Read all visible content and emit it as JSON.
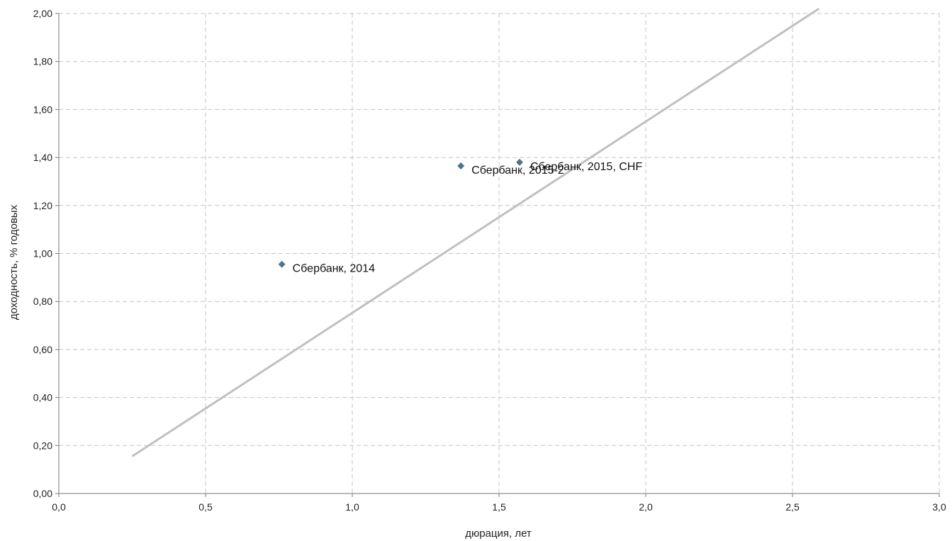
{
  "chart_data": {
    "type": "scatter",
    "xlabel": "дюрация, лет",
    "ylabel": "доходность, % годовых",
    "xlim": [
      0,
      3
    ],
    "ylim": [
      0,
      2
    ],
    "x_ticks": [
      "0,0",
      "0,5",
      "1,0",
      "1,5",
      "2,0",
      "2,5",
      "3,0"
    ],
    "y_ticks": [
      "0,00",
      "0,20",
      "0,40",
      "0,60",
      "0,80",
      "1,00",
      "1,20",
      "1,40",
      "1,60",
      "1,80",
      "2,00"
    ],
    "grid": true,
    "colors": {
      "points": "#4f7290",
      "trendline": "#c0c0c0",
      "grid": "#c4c4c4"
    },
    "series": [
      {
        "points": [
          {
            "x": 0.76,
            "y": 0.955,
            "label": "Сбербанк, 2014"
          },
          {
            "x": 1.37,
            "y": 1.365,
            "label": "Сбербанк, 2015-2"
          },
          {
            "x": 1.57,
            "y": 1.38,
            "label": "Сбербанк, 2015, CHF"
          }
        ]
      }
    ],
    "trendline": {
      "x": [
        0.25,
        2.59
      ],
      "y": [
        0.155,
        2.02
      ]
    }
  }
}
